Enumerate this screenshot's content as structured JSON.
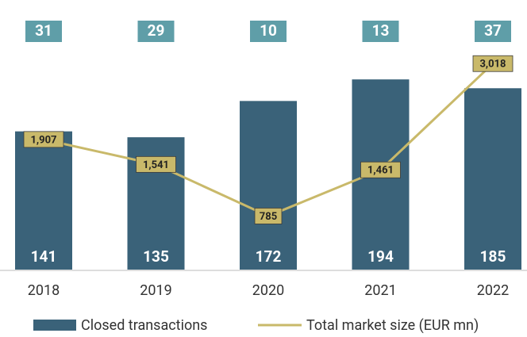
{
  "chart_data": {
    "type": "bar",
    "categories": [
      "2018",
      "2019",
      "2020",
      "2021",
      "2022"
    ],
    "series": [
      {
        "name": "Closed transactions",
        "type": "bar",
        "color": "#3a6279",
        "values": [
          141,
          135,
          172,
          194,
          185
        ]
      },
      {
        "name": "Total market size (EUR mn)",
        "type": "line",
        "axis": "y2",
        "color": "#c9b96a",
        "values": [
          1907,
          1541,
          785,
          1461,
          3018
        ],
        "value_labels": [
          "1,907",
          "1,541",
          "785",
          "1,461",
          "3,018"
        ]
      }
    ],
    "box_values": [
      31,
      29,
      10,
      13,
      37
    ],
    "box_color": "#5f9ea8",
    "ylim": [
      0,
      275
    ],
    "y2lim": [
      0,
      3950
    ],
    "legend": "bottom"
  }
}
